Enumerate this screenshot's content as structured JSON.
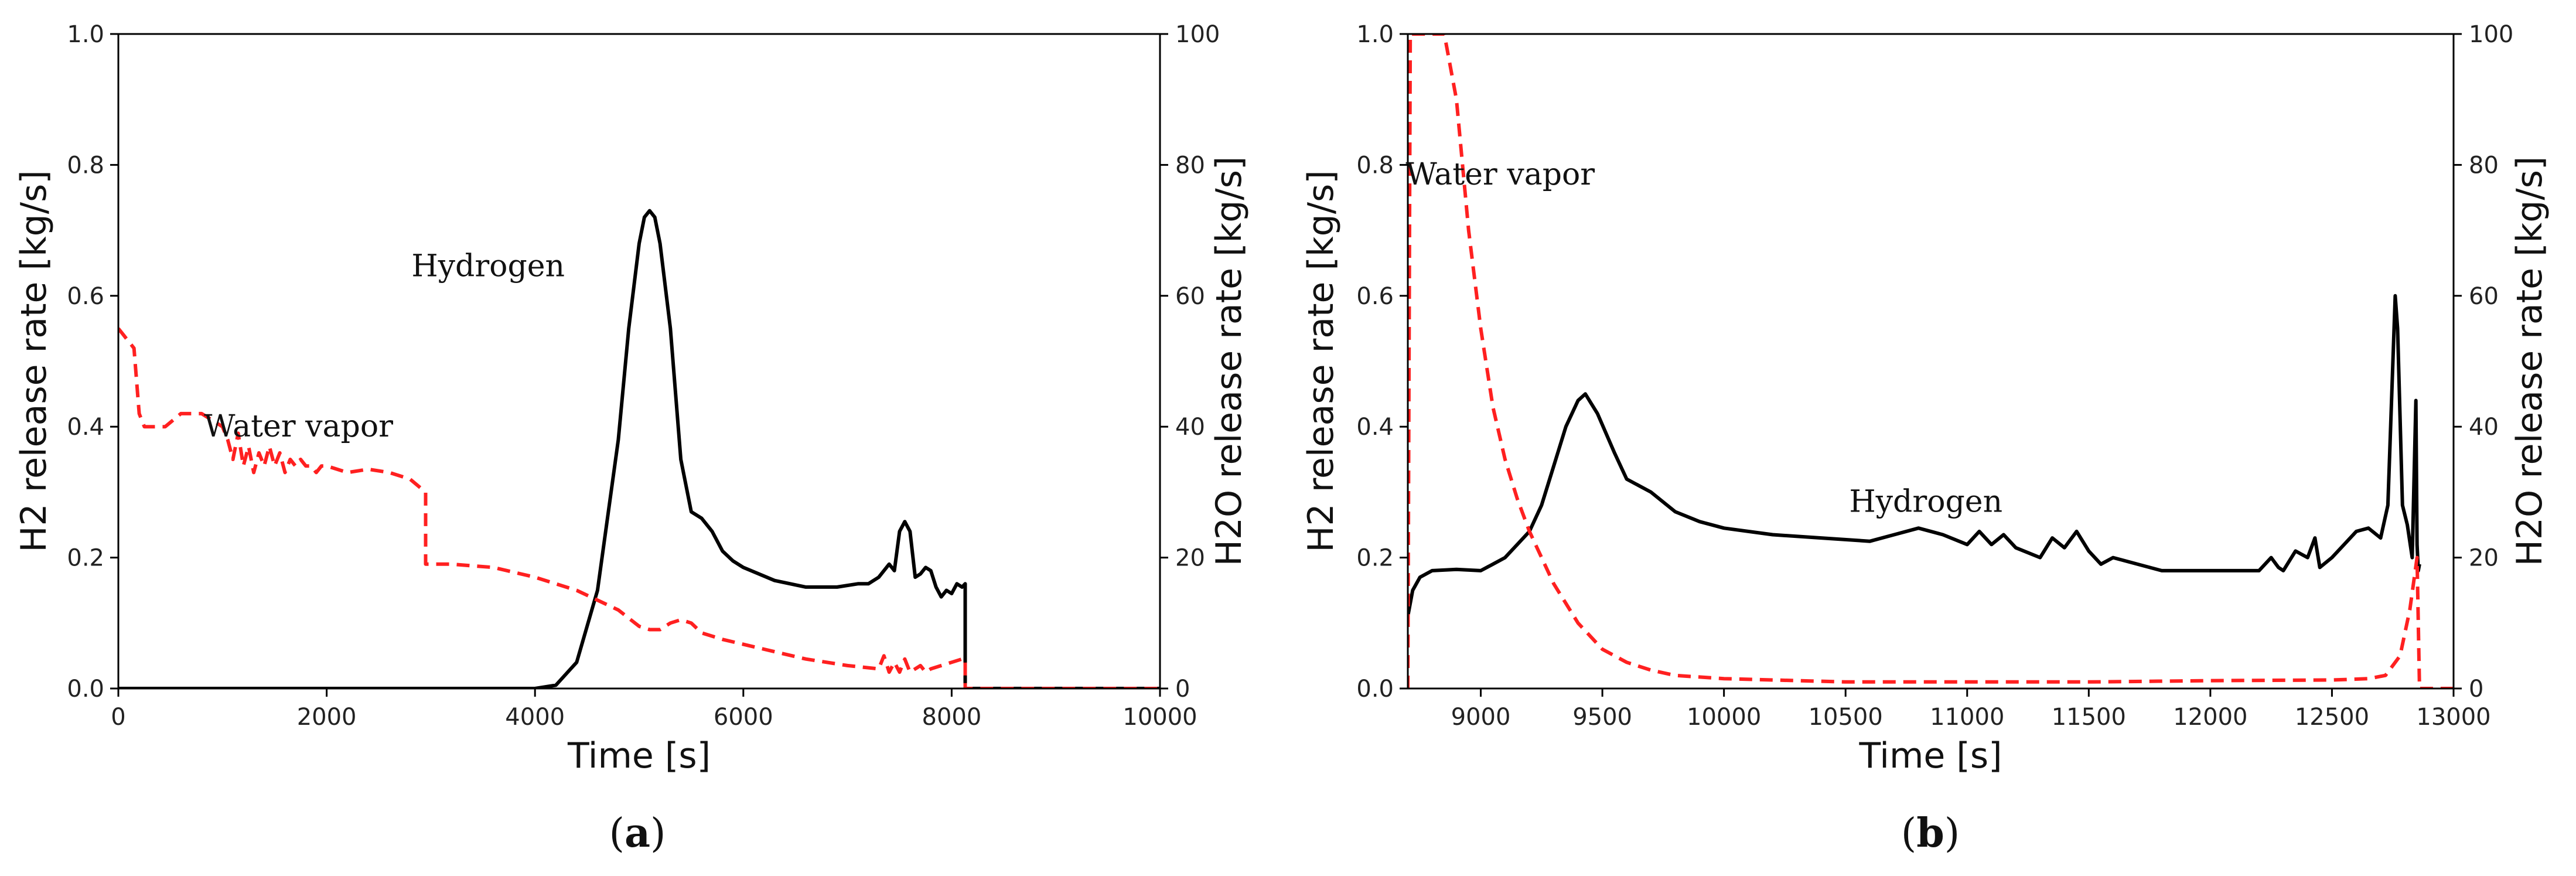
{
  "chart_data": [
    {
      "type": "line",
      "panel_label": "a",
      "xlabel": "Time [s]",
      "ylabel_left": "H2 release rate [kg/s]",
      "ylabel_right": "H2O release rate [kg/s]",
      "xlim": [
        0,
        10000
      ],
      "ylim_left": [
        0,
        1.0
      ],
      "ylim_right": [
        0,
        100
      ],
      "xticks": [
        0,
        2000,
        4000,
        6000,
        8000,
        10000
      ],
      "yticks_left": [
        0.0,
        0.2,
        0.4,
        0.6,
        0.8,
        1.0
      ],
      "yticks_right": [
        0,
        20,
        40,
        60,
        80,
        100
      ],
      "annotations": [
        {
          "text": "Hydrogen",
          "x": 3550,
          "y": 0.63
        },
        {
          "text": "Water vapor",
          "x": 1730,
          "y": 0.385
        }
      ],
      "series": [
        {
          "name": "Hydrogen",
          "axis": "left",
          "color": "#000000",
          "style": "solid",
          "x": [
            0,
            4000,
            4200,
            4400,
            4600,
            4800,
            4900,
            5000,
            5050,
            5100,
            5150,
            5200,
            5300,
            5400,
            5500,
            5600,
            5700,
            5800,
            5900,
            6000,
            6300,
            6600,
            6900,
            7100,
            7200,
            7300,
            7400,
            7450,
            7500,
            7550,
            7600,
            7650,
            7700,
            7750,
            7800,
            7850,
            7900,
            7950,
            8000,
            8050,
            8100,
            8130,
            8130,
            10000
          ],
          "y": [
            0,
            0,
            0.005,
            0.04,
            0.15,
            0.38,
            0.55,
            0.68,
            0.72,
            0.73,
            0.72,
            0.68,
            0.55,
            0.35,
            0.27,
            0.26,
            0.24,
            0.21,
            0.195,
            0.185,
            0.165,
            0.155,
            0.155,
            0.16,
            0.16,
            0.17,
            0.19,
            0.18,
            0.24,
            0.255,
            0.24,
            0.17,
            0.175,
            0.185,
            0.18,
            0.155,
            0.14,
            0.15,
            0.145,
            0.16,
            0.155,
            0.16,
            0,
            0
          ]
        },
        {
          "name": "Water vapor",
          "axis": "right",
          "color": "#ff2020",
          "style": "dashed",
          "x": [
            0,
            50,
            100,
            150,
            200,
            250,
            300,
            450,
            600,
            650,
            800,
            900,
            1000,
            1050,
            1100,
            1150,
            1200,
            1250,
            1300,
            1350,
            1400,
            1450,
            1500,
            1550,
            1600,
            1650,
            1700,
            1750,
            1800,
            1850,
            1900,
            1950,
            2000,
            2200,
            2400,
            2600,
            2800,
            2950,
            2950,
            3200,
            3600,
            4000,
            4400,
            4800,
            5000,
            5100,
            5200,
            5300,
            5400,
            5500,
            5600,
            5800,
            6200,
            6600,
            7000,
            7300,
            7350,
            7400,
            7450,
            7500,
            7550,
            7600,
            7650,
            7700,
            7750,
            7800,
            7900,
            8000,
            8100,
            8130,
            8130,
            10000
          ],
          "y": [
            55,
            54,
            53,
            52,
            42,
            40,
            40,
            40,
            42,
            42,
            42,
            41,
            40,
            38,
            35,
            39,
            34,
            37,
            33,
            36,
            34,
            37,
            34,
            36,
            33,
            35,
            34,
            35,
            34,
            34,
            33,
            34,
            34,
            33,
            33.5,
            33,
            32,
            30,
            19,
            19,
            18.5,
            17,
            15,
            12,
            9.5,
            9,
            9,
            10,
            10.5,
            10,
            8.5,
            7.5,
            6,
            4.5,
            3.5,
            3,
            5,
            2.5,
            4,
            2.5,
            4.5,
            2.5,
            3,
            3.5,
            2.5,
            3,
            3.5,
            4,
            4.5,
            4.5,
            0,
            0
          ]
        }
      ]
    },
    {
      "type": "line",
      "panel_label": "b",
      "xlabel": "Time [s]",
      "ylabel_left": "H2 release rate [kg/s]",
      "ylabel_right": "H2O release rate [kg/s]",
      "xlim": [
        8700,
        13000
      ],
      "ylim_left": [
        0,
        1.0
      ],
      "ylim_right": [
        0,
        100
      ],
      "xticks": [
        9000,
        9500,
        10000,
        10500,
        11000,
        11500,
        12000,
        12500,
        13000
      ],
      "yticks_left": [
        0.0,
        0.2,
        0.4,
        0.6,
        0.8,
        1.0
      ],
      "yticks_right": [
        0,
        20,
        40,
        60,
        80,
        100
      ],
      "annotations": [
        {
          "text": "Hydrogen",
          "x": 10830,
          "y": 0.27
        },
        {
          "text": "Water vapor",
          "x": 9080,
          "y": 0.77
        }
      ],
      "series": [
        {
          "name": "Hydrogen",
          "axis": "left",
          "color": "#000000",
          "style": "solid",
          "x": [
            8700,
            8720,
            8750,
            8800,
            8900,
            9000,
            9050,
            9100,
            9150,
            9200,
            9250,
            9300,
            9350,
            9400,
            9430,
            9480,
            9550,
            9600,
            9700,
            9800,
            9900,
            10000,
            10200,
            10400,
            10600,
            10700,
            10800,
            10900,
            11000,
            11050,
            11100,
            11150,
            11200,
            11300,
            11350,
            11400,
            11450,
            11500,
            11550,
            11600,
            11800,
            12000,
            12200,
            12250,
            12280,
            12300,
            12350,
            12400,
            12430,
            12450,
            12500,
            12550,
            12600,
            12650,
            12700,
            12730,
            12760,
            12770,
            12790,
            12810,
            12830,
            12845,
            12850,
            12855,
            12860
          ],
          "y": [
            0.11,
            0.15,
            0.17,
            0.18,
            0.182,
            0.18,
            0.19,
            0.2,
            0.22,
            0.24,
            0.28,
            0.34,
            0.4,
            0.44,
            0.45,
            0.42,
            0.36,
            0.32,
            0.3,
            0.27,
            0.255,
            0.245,
            0.235,
            0.23,
            0.225,
            0.235,
            0.245,
            0.235,
            0.22,
            0.24,
            0.22,
            0.235,
            0.215,
            0.2,
            0.23,
            0.215,
            0.24,
            0.21,
            0.19,
            0.2,
            0.18,
            0.18,
            0.18,
            0.2,
            0.185,
            0.18,
            0.21,
            0.2,
            0.23,
            0.185,
            0.2,
            0.22,
            0.24,
            0.245,
            0.23,
            0.28,
            0.6,
            0.55,
            0.28,
            0.25,
            0.2,
            0.44,
            0.22,
            0.18,
            0.19
          ]
        },
        {
          "name": "Water vapor",
          "axis": "right",
          "color": "#ff2020",
          "style": "dashed",
          "x": [
            8700,
            8710,
            8720,
            8750,
            8800,
            8850,
            8900,
            8950,
            9000,
            9050,
            9100,
            9150,
            9200,
            9300,
            9400,
            9500,
            9600,
            9700,
            9800,
            10000,
            10500,
            11000,
            11500,
            12000,
            12500,
            12650,
            12720,
            12780,
            12820,
            12850,
            12860,
            12870,
            13000
          ],
          "y": [
            0,
            100,
            100,
            100,
            100,
            100,
            90,
            70,
            55,
            43,
            35,
            29,
            24,
            16,
            10,
            6,
            4,
            2.8,
            2,
            1.5,
            1,
            1,
            1,
            1.2,
            1.3,
            1.5,
            2,
            5,
            12,
            20,
            0,
            0,
            0
          ]
        }
      ]
    }
  ]
}
